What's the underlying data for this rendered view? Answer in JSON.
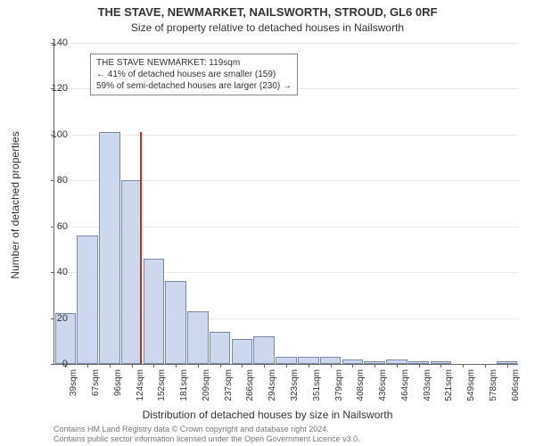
{
  "title_main": "THE STAVE, NEWMARKET, NAILSWORTH, STROUD, GL6 0RF",
  "title_sub": "Size of property relative to detached houses in Nailsworth",
  "y_axis_label": "Number of detached properties",
  "x_axis_label": "Distribution of detached houses by size in Nailsworth",
  "chart": {
    "type": "histogram",
    "ylim": [
      0,
      140
    ],
    "ytick_step": 20,
    "y_ticks": [
      0,
      20,
      40,
      60,
      80,
      100,
      120,
      140
    ],
    "bar_fill": "#cdd8ec",
    "bar_border": "#7a8aa8",
    "background": "#ffffff",
    "grid_color": "#e8e8e8",
    "axis_color": "#666666",
    "marker_color": "#d62728",
    "marker_x_index": 2.9,
    "marker_height": 101,
    "x_labels": [
      "39sqm",
      "67sqm",
      "96sqm",
      "124sqm",
      "152sqm",
      "181sqm",
      "209sqm",
      "237sqm",
      "266sqm",
      "294sqm",
      "323sqm",
      "351sqm",
      "379sqm",
      "408sqm",
      "436sqm",
      "464sqm",
      "493sqm",
      "521sqm",
      "549sqm",
      "578sqm",
      "606sqm"
    ],
    "values": [
      22,
      56,
      101,
      80,
      46,
      36,
      23,
      14,
      11,
      12,
      3,
      3,
      3,
      2,
      1,
      2,
      1,
      1,
      0,
      0,
      1
    ]
  },
  "annotation": {
    "line1": "THE STAVE NEWMARKET: 119sqm",
    "line2": "← 41% of detached houses are smaller (159)",
    "line3": "59% of semi-detached houses are larger (230) →"
  },
  "credits": {
    "line1": "Contains HM Land Registry data © Crown copyright and database right 2024.",
    "line2": "Contains public sector information licensed under the Open Government Licence v3.0."
  }
}
